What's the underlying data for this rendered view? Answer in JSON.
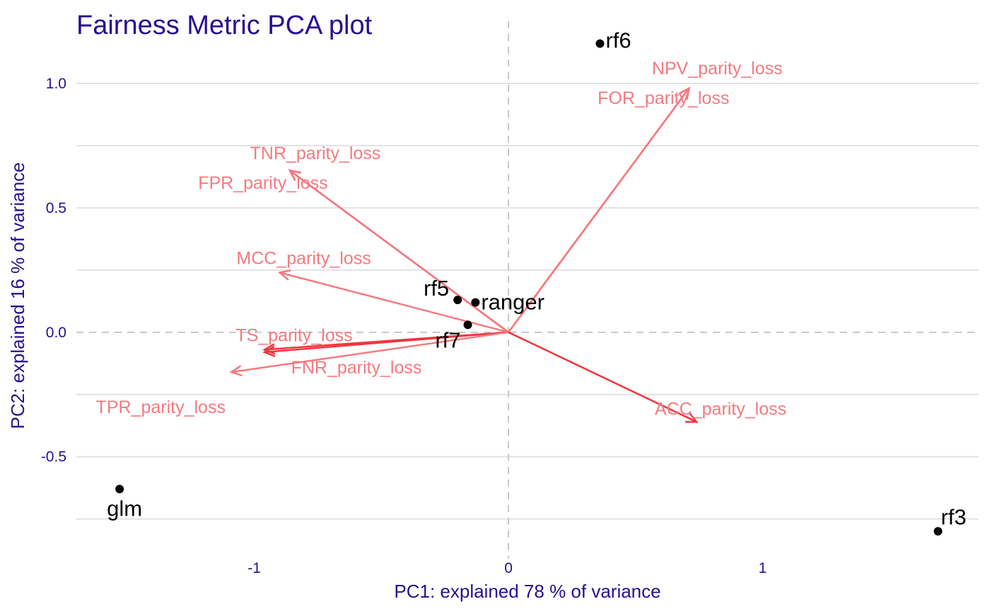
{
  "chart_data": {
    "type": "scatter",
    "title": "Fairness Metric PCA plot",
    "xlabel": "PC1: explained 78 % of variance",
    "ylabel": "PC2: explained 16 % of variance",
    "xlim": [
      -1.7,
      1.85
    ],
    "ylim": [
      -0.91,
      1.25
    ],
    "x_ticks": [
      -1,
      0,
      1
    ],
    "x_tick_labels": [
      "-1",
      "0",
      "1"
    ],
    "y_ticks": [
      -0.5,
      0.0,
      0.5,
      1.0
    ],
    "y_tick_labels": [
      "-0.5",
      "0.0",
      "0.5",
      "1.0"
    ],
    "y_minor_gridlines": [
      -0.75,
      -0.25,
      0.25,
      0.75
    ],
    "grid": "horizontal",
    "reference_lines": "dashed lines at x = 0 and y = 0",
    "points": [
      {
        "label": "rf6",
        "x": 0.36,
        "y": 1.16
      },
      {
        "label": "rf5",
        "x": -0.2,
        "y": 0.13
      },
      {
        "label": "ranger",
        "x": -0.13,
        "y": 0.12
      },
      {
        "label": "rf7",
        "x": -0.16,
        "y": 0.03
      },
      {
        "label": "glm",
        "x": -1.53,
        "y": -0.63
      },
      {
        "label": "rf3",
        "x": 1.69,
        "y": -0.8
      }
    ],
    "loadings": [
      {
        "label": "NPV_parity_loss",
        "x": 0.71,
        "y": 0.98
      },
      {
        "label": "FOR_parity_loss",
        "x": 0.71,
        "y": 0.98
      },
      {
        "label": "TNR_parity_loss",
        "x": -0.86,
        "y": 0.65
      },
      {
        "label": "FPR_parity_loss",
        "x": -0.86,
        "y": 0.65
      },
      {
        "label": "MCC_parity_loss",
        "x": -0.9,
        "y": 0.24
      },
      {
        "label": "TS_parity_loss",
        "x": -0.96,
        "y": -0.07
      },
      {
        "label": "FNR_parity_loss",
        "x": -0.96,
        "y": -0.08
      },
      {
        "label": "TPR_parity_loss",
        "x": -1.09,
        "y": -0.16
      },
      {
        "label": "ACC_parity_loss",
        "x": 0.74,
        "y": -0.36
      }
    ]
  },
  "colors": {
    "title": "#2a0e8f",
    "axis_text": "#2a0e8f",
    "points": "#000000",
    "arrow": "#f0353d",
    "arrow_light": "#f47a80",
    "loading_text": "#f47a80",
    "gridline": "#e3e3e3",
    "reference_line": "#c8c8c8"
  }
}
